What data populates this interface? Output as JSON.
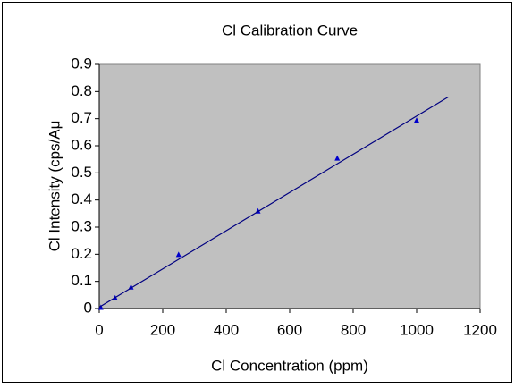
{
  "chart_data": {
    "type": "scatter",
    "title": "Cl Calibration Curve",
    "x_label": "Cl Concentration (ppm)",
    "y_label": "Cl Intensity (cps/Aμ",
    "series": [
      {
        "style": "markers",
        "color": "#0000cc",
        "x": [
          5,
          50,
          100,
          250,
          500,
          750,
          1000
        ],
        "values": [
          0.005,
          0.04,
          0.08,
          0.2,
          0.36,
          0.555,
          0.695
        ]
      },
      {
        "style": "line",
        "color": "#000080",
        "x": [
          0,
          1100
        ],
        "values": [
          0.005,
          0.78
        ]
      }
    ],
    "xlim": [
      0,
      1200
    ],
    "xticks": [
      0,
      200,
      400,
      600,
      800,
      1000,
      1200
    ],
    "ylim": [
      0,
      0.9
    ],
    "yticks": [
      0,
      0.1,
      0.2,
      0.3,
      0.4,
      0.5,
      0.6,
      0.7,
      0.8,
      0.9
    ],
    "plot_background": "#c0c0c0"
  }
}
